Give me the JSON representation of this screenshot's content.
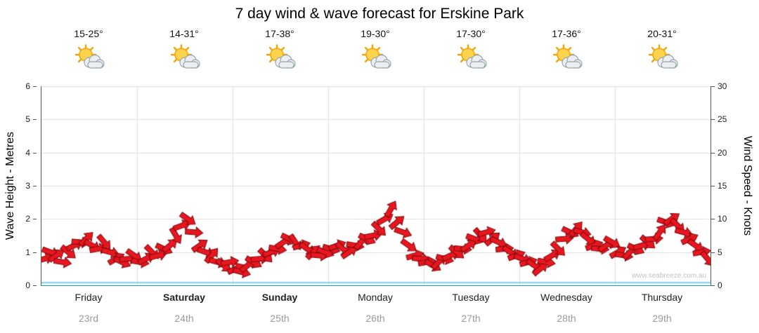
{
  "header": {
    "title": "7 day wind & wave forecast for Erskine Park"
  },
  "axes": {
    "left_label": "Wave Height - Metres",
    "right_label": "Wind Speed - Knots"
  },
  "days": [
    {
      "name": "Friday",
      "date": "23rd",
      "temp": "15-25°",
      "bold": false,
      "icon": "partly-cloudy"
    },
    {
      "name": "Saturday",
      "date": "24th",
      "temp": "14-31°",
      "bold": true,
      "icon": "partly-cloudy"
    },
    {
      "name": "Sunday",
      "date": "25th",
      "temp": "17-38°",
      "bold": true,
      "icon": "partly-cloudy"
    },
    {
      "name": "Monday",
      "date": "26th",
      "temp": "19-30°",
      "bold": false,
      "icon": "partly-cloudy"
    },
    {
      "name": "Tuesday",
      "date": "27th",
      "temp": "17-30°",
      "bold": false,
      "icon": "partly-cloudy"
    },
    {
      "name": "Wednesday",
      "date": "28th",
      "temp": "17-36°",
      "bold": false,
      "icon": "partly-cloudy"
    },
    {
      "name": "Thursday",
      "date": "29th",
      "temp": "20-31°",
      "bold": false,
      "icon": "partly-cloudy"
    }
  ],
  "chart_data": {
    "type": "scatter",
    "subtype": "wind-arrow-timeseries",
    "title": "7 day wind & wave forecast for Erskine Park",
    "ylabel_left": "Wave Height - Metres",
    "ylabel_right": "Wind Speed - Knots",
    "ylim_left": [
      0,
      6
    ],
    "ylim_right": [
      0,
      30
    ],
    "left_ticks": [
      0,
      1,
      2,
      3,
      4,
      5,
      6
    ],
    "right_ticks": [
      0,
      5,
      10,
      15,
      20,
      25,
      30
    ],
    "grid": true,
    "points_per_day": 16,
    "wind_knots": [
      4,
      5,
      4.5,
      3.5,
      5,
      6,
      6.5,
      7,
      6,
      5.5,
      6.5,
      5,
      4,
      3.5,
      4,
      4.5,
      3.5,
      4,
      5,
      4.5,
      5.5,
      6,
      7.5,
      9,
      10,
      8,
      6,
      5,
      4.5,
      3.5,
      3,
      3.5,
      2.5,
      2,
      3,
      3.5,
      4,
      4.5,
      5,
      5.5,
      6.5,
      7,
      6.5,
      6,
      5.5,
      5,
      4.5,
      5,
      5.5,
      6,
      5.5,
      5,
      6,
      6.5,
      7,
      7.5,
      8.5,
      10,
      11.5,
      9.5,
      8,
      6,
      4.5,
      4,
      3.5,
      3,
      3.5,
      4,
      4.5,
      5,
      5.5,
      6,
      7,
      7.5,
      8,
      7,
      6.5,
      5.5,
      5,
      4.5,
      4,
      3.5,
      3,
      2.5,
      3.5,
      4.5,
      5.5,
      7,
      8,
      8.5,
      8,
      7,
      6,
      5.5,
      6,
      6.5,
      5,
      4.5,
      5,
      5.5,
      6,
      6.5,
      7,
      8,
      9.5,
      10,
      9,
      8,
      7,
      6,
      5,
      4
    ],
    "wind_dir_deg": [
      -15,
      20,
      -35,
      10,
      40,
      -25,
      5,
      -45,
      30,
      -10,
      50,
      15,
      -30,
      25,
      -5,
      35,
      10,
      -30,
      45,
      -15,
      25,
      -40,
      60,
      -20,
      35,
      5,
      -35,
      20,
      -50,
      15,
      40,
      -10,
      -25,
      15,
      -40,
      30,
      -5,
      45,
      -20,
      10,
      -35,
      25,
      55,
      -15,
      35,
      -45,
      5,
      20,
      15,
      -20,
      40,
      -35,
      10,
      -50,
      25,
      -10,
      45,
      -30,
      -60,
      -40,
      20,
      35,
      -15,
      5,
      -10,
      30,
      -45,
      15,
      -25,
      40,
      5,
      -35,
      20,
      50,
      -15,
      -40,
      25,
      -5,
      35,
      -20,
      20,
      -15,
      35,
      -40,
      10,
      -30,
      45,
      -5,
      25,
      -50,
      15,
      40,
      -20,
      5,
      -35,
      30,
      -30,
      10,
      -45,
      25,
      -15,
      40,
      -5,
      -55,
      20,
      -35,
      45,
      15,
      -25,
      35,
      -10,
      50
    ],
    "wave_height_m": 0.08,
    "arrow_color": "#e8161e",
    "arrow_outline": "#7d070c",
    "wave_color": "#79cfe4",
    "grid_color": "#dedede",
    "watermark": "www.seabreeze.com.au"
  }
}
